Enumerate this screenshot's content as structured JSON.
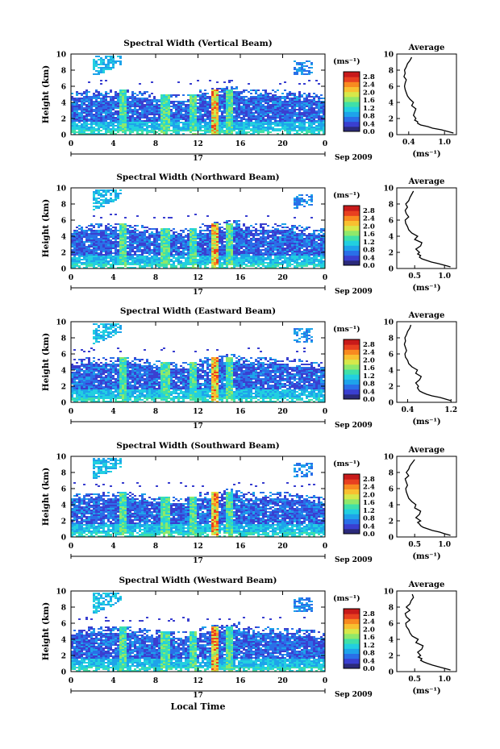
{
  "figure": {
    "xlabel": "Local Time",
    "date_label": "Sep 2009",
    "day_label": "17"
  },
  "chart_data": [
    {
      "type": "heatmap",
      "title": "Spectral Width (Vertical Beam)",
      "ylabel": "Height (km)",
      "xlim": [
        0,
        24
      ],
      "ylim": [
        0,
        10
      ],
      "x_ticks": [
        "0",
        "4",
        "8",
        "12",
        "16",
        "20",
        "0"
      ],
      "y_ticks": [
        "0",
        "2",
        "4",
        "6",
        "8",
        "10"
      ],
      "colorbar": {
        "unit": "(ms⁻¹)",
        "ticks": [
          "0.0",
          "0.4",
          "0.8",
          "1.2",
          "1.6",
          "2.0",
          "2.4",
          "2.8"
        ]
      },
      "average": {
        "title": "Average",
        "unit": "(ms⁻¹)",
        "xlim": [
          0.2,
          1.2
        ],
        "x_ticks": [
          "0.4",
          "1.0"
        ],
        "heights": [
          0.2,
          0.4,
          0.6,
          0.8,
          1.0,
          1.2,
          1.4,
          1.6,
          1.8,
          2.0,
          2.4,
          2.8,
          3.2,
          3.6,
          4.0,
          4.4,
          4.8,
          5.2,
          5.6,
          6.0,
          6.4,
          6.8,
          7.2,
          7.6,
          8.0,
          8.4,
          8.8,
          9.2,
          9.6
        ],
        "values": [
          1.15,
          1.05,
          0.95,
          0.8,
          0.72,
          0.6,
          0.55,
          0.55,
          0.5,
          0.52,
          0.48,
          0.5,
          0.52,
          0.45,
          0.48,
          0.42,
          0.38,
          0.36,
          0.34,
          0.33,
          0.34,
          0.36,
          0.32,
          0.34,
          0.33,
          0.36,
          0.38,
          0.42,
          0.45
        ]
      }
    },
    {
      "type": "heatmap",
      "title": "Spectral Width (Northward Beam)",
      "ylabel": "Height (km)",
      "xlim": [
        0,
        24
      ],
      "ylim": [
        0,
        10
      ],
      "x_ticks": [
        "0",
        "4",
        "8",
        "12",
        "16",
        "20",
        "0"
      ],
      "y_ticks": [
        "0",
        "2",
        "4",
        "6",
        "8",
        "10"
      ],
      "colorbar": {
        "unit": "(ms⁻¹)",
        "ticks": [
          "0.0",
          "0.4",
          "0.8",
          "1.2",
          "1.6",
          "2.0",
          "2.4",
          "2.8"
        ]
      },
      "average": {
        "title": "Average",
        "unit": "(ms⁻¹)",
        "xlim": [
          0.2,
          1.2
        ],
        "x_ticks": [
          "0.5",
          "1.0"
        ],
        "heights": [
          0.2,
          0.4,
          0.6,
          0.8,
          1.0,
          1.2,
          1.4,
          1.6,
          1.8,
          2.0,
          2.4,
          2.8,
          3.2,
          3.6,
          4.0,
          4.4,
          4.8,
          5.2,
          5.6,
          6.0,
          6.4,
          6.8,
          7.2,
          7.6,
          8.0,
          8.4,
          8.8,
          9.2,
          9.6
        ],
        "values": [
          1.1,
          1.0,
          0.9,
          0.78,
          0.7,
          0.62,
          0.58,
          0.6,
          0.55,
          0.58,
          0.52,
          0.6,
          0.62,
          0.5,
          0.55,
          0.45,
          0.4,
          0.38,
          0.35,
          0.34,
          0.4,
          0.36,
          0.34,
          0.38,
          0.35,
          0.4,
          0.42,
          0.45,
          0.48
        ]
      }
    },
    {
      "type": "heatmap",
      "title": "Spectral Width (Eastward Beam)",
      "ylabel": "Height (km)",
      "xlim": [
        0,
        24
      ],
      "ylim": [
        0,
        10
      ],
      "x_ticks": [
        "0",
        "4",
        "8",
        "12",
        "16",
        "20",
        "0"
      ],
      "y_ticks": [
        "0",
        "2",
        "4",
        "6",
        "8",
        "10"
      ],
      "colorbar": {
        "unit": "(ms⁻¹)",
        "ticks": [
          "0.0",
          "0.4",
          "0.8",
          "1.2",
          "1.6",
          "2.0",
          "2.4",
          "2.8"
        ]
      },
      "average": {
        "title": "Average",
        "unit": "(ms⁻¹)",
        "xlim": [
          0.2,
          1.3
        ],
        "x_ticks": [
          "0.4",
          "1.2"
        ],
        "heights": [
          0.2,
          0.4,
          0.6,
          0.8,
          1.0,
          1.2,
          1.4,
          1.6,
          1.8,
          2.0,
          2.4,
          2.8,
          3.2,
          3.6,
          4.0,
          4.4,
          4.8,
          5.2,
          5.6,
          6.0,
          6.4,
          6.8,
          7.2,
          7.6,
          8.0,
          8.4,
          8.8,
          9.2,
          9.6
        ],
        "values": [
          1.2,
          1.1,
          1.0,
          0.85,
          0.75,
          0.68,
          0.62,
          0.6,
          0.58,
          0.6,
          0.55,
          0.62,
          0.65,
          0.55,
          0.58,
          0.48,
          0.42,
          0.4,
          0.36,
          0.35,
          0.38,
          0.36,
          0.34,
          0.36,
          0.35,
          0.38,
          0.4,
          0.44,
          0.46
        ]
      }
    },
    {
      "type": "heatmap",
      "title": "Spectral Width (Southward Beam)",
      "ylabel": "Height (km)",
      "xlim": [
        0,
        24
      ],
      "ylim": [
        0,
        10
      ],
      "x_ticks": [
        "0",
        "4",
        "8",
        "12",
        "16",
        "20",
        "0"
      ],
      "y_ticks": [
        "0",
        "2",
        "4",
        "6",
        "8",
        "10"
      ],
      "colorbar": {
        "unit": "(ms⁻¹)",
        "ticks": [
          "0.0",
          "0.4",
          "0.8",
          "1.2",
          "1.6",
          "2.0",
          "2.4",
          "2.8"
        ]
      },
      "average": {
        "title": "Average",
        "unit": "(ms⁻¹)",
        "xlim": [
          0.2,
          1.2
        ],
        "x_ticks": [
          "0.5",
          "1.0"
        ],
        "heights": [
          0.2,
          0.4,
          0.6,
          0.8,
          1.0,
          1.2,
          1.4,
          1.6,
          1.8,
          2.0,
          2.4,
          2.8,
          3.2,
          3.6,
          4.0,
          4.4,
          4.8,
          5.2,
          5.6,
          6.0,
          6.4,
          6.8,
          7.2,
          7.6,
          8.0,
          8.4,
          8.8,
          9.2,
          9.6
        ],
        "values": [
          1.1,
          1.0,
          0.92,
          0.8,
          0.72,
          0.64,
          0.6,
          0.58,
          0.55,
          0.6,
          0.52,
          0.58,
          0.6,
          0.5,
          0.52,
          0.45,
          0.4,
          0.38,
          0.36,
          0.35,
          0.38,
          0.36,
          0.34,
          0.4,
          0.36,
          0.4,
          0.42,
          0.46,
          0.5
        ]
      }
    },
    {
      "type": "heatmap",
      "title": "Spectral Width (Westward Beam)",
      "ylabel": "Height (km)",
      "xlim": [
        0,
        24
      ],
      "ylim": [
        0,
        10
      ],
      "x_ticks": [
        "0",
        "4",
        "8",
        "12",
        "16",
        "20",
        "0"
      ],
      "y_ticks": [
        "0",
        "2",
        "4",
        "6",
        "8",
        "10"
      ],
      "colorbar": {
        "unit": "(ms⁻¹)",
        "ticks": [
          "0.0",
          "0.4",
          "0.8",
          "1.2",
          "1.6",
          "2.0",
          "2.4",
          "2.8"
        ]
      },
      "average": {
        "title": "Average",
        "unit": "(ms⁻¹)",
        "xlim": [
          0.2,
          1.2
        ],
        "x_ticks": [
          "0.5",
          "1.0"
        ],
        "heights": [
          0.2,
          0.4,
          0.6,
          0.8,
          1.0,
          1.2,
          1.4,
          1.6,
          1.8,
          2.0,
          2.4,
          2.8,
          3.2,
          3.6,
          4.0,
          4.4,
          4.8,
          5.2,
          5.6,
          6.0,
          6.4,
          6.8,
          7.2,
          7.6,
          8.0,
          8.4,
          8.8,
          9.2,
          9.6
        ],
        "values": [
          1.1,
          1.0,
          0.9,
          0.8,
          0.72,
          0.65,
          0.6,
          0.62,
          0.56,
          0.6,
          0.55,
          0.62,
          0.64,
          0.52,
          0.56,
          0.46,
          0.42,
          0.4,
          0.36,
          0.35,
          0.42,
          0.36,
          0.34,
          0.42,
          0.36,
          0.42,
          0.44,
          0.48,
          0.46
        ]
      }
    }
  ]
}
